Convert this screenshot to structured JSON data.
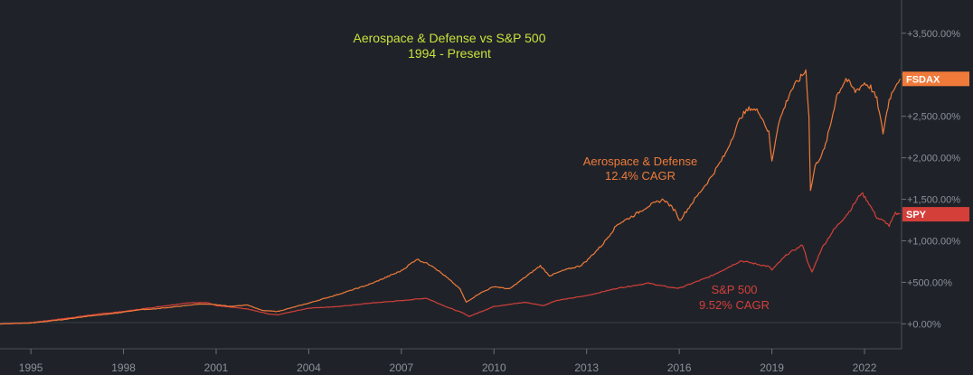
{
  "chart_data": {
    "type": "line",
    "title": "Aerospace & Defense vs S&P 500",
    "subtitle": "1994 - Present",
    "xlim": [
      1994,
      2023.2
    ],
    "ylim": [
      -300,
      3900
    ],
    "x_ticks": [
      {
        "value": 1995,
        "label": "1995"
      },
      {
        "value": 1998,
        "label": "1998"
      },
      {
        "value": 2001,
        "label": "2001"
      },
      {
        "value": 2004,
        "label": "2004"
      },
      {
        "value": 2007,
        "label": "2007"
      },
      {
        "value": 2010,
        "label": "2010"
      },
      {
        "value": 2013,
        "label": "2013"
      },
      {
        "value": 2016,
        "label": "2016"
      },
      {
        "value": 2019,
        "label": "2019"
      },
      {
        "value": 2022,
        "label": "2022"
      }
    ],
    "y_ticks": [
      {
        "value": 0,
        "label": "+0.00%"
      },
      {
        "value": 500,
        "label": "+500.00%"
      },
      {
        "value": 1000,
        "label": "+1,000.00%"
      },
      {
        "value": 1500,
        "label": "+1,500.00%"
      },
      {
        "value": 2000,
        "label": "+2,000.00%"
      },
      {
        "value": 2500,
        "label": "+2,500.00%"
      },
      {
        "value": 3000,
        "label": ""
      },
      {
        "value": 3500,
        "label": "+3,500.00%"
      }
    ],
    "grid": false,
    "series": [
      {
        "name": "FSDAX",
        "color": "#f07a3a",
        "annotation": [
          "Aerospace & Defense",
          "12.4% CAGR"
        ],
        "points": [
          [
            1994.0,
            0
          ],
          [
            1995.0,
            10
          ],
          [
            1996.0,
            50
          ],
          [
            1997.0,
            100
          ],
          [
            1997.8,
            130
          ],
          [
            1998.5,
            170
          ],
          [
            1999.0,
            180
          ],
          [
            2000.0,
            220
          ],
          [
            2000.5,
            240
          ],
          [
            2001.0,
            230
          ],
          [
            2001.5,
            210
          ],
          [
            2002.0,
            230
          ],
          [
            2002.5,
            160
          ],
          [
            2003.0,
            150
          ],
          [
            2003.5,
            200
          ],
          [
            2004.0,
            250
          ],
          [
            2005.0,
            360
          ],
          [
            2006.0,
            480
          ],
          [
            2007.0,
            640
          ],
          [
            2007.5,
            780
          ],
          [
            2008.0,
            700
          ],
          [
            2008.5,
            550
          ],
          [
            2008.9,
            420
          ],
          [
            2009.1,
            260
          ],
          [
            2009.5,
            360
          ],
          [
            2010.0,
            450
          ],
          [
            2010.5,
            420
          ],
          [
            2011.0,
            560
          ],
          [
            2011.5,
            700
          ],
          [
            2011.8,
            580
          ],
          [
            2012.3,
            650
          ],
          [
            2012.8,
            700
          ],
          [
            2013.0,
            760
          ],
          [
            2013.5,
            950
          ],
          [
            2014.0,
            1200
          ],
          [
            2014.5,
            1300
          ],
          [
            2015.0,
            1420
          ],
          [
            2015.5,
            1500
          ],
          [
            2015.9,
            1350
          ],
          [
            2016.0,
            1240
          ],
          [
            2016.5,
            1500
          ],
          [
            2017.0,
            1750
          ],
          [
            2017.5,
            2050
          ],
          [
            2018.0,
            2500
          ],
          [
            2018.3,
            2600
          ],
          [
            2018.6,
            2550
          ],
          [
            2018.9,
            2300
          ],
          [
            2019.0,
            1950
          ],
          [
            2019.2,
            2400
          ],
          [
            2019.6,
            2800
          ],
          [
            2019.9,
            2950
          ],
          [
            2020.1,
            3050
          ],
          [
            2020.2,
            2500
          ],
          [
            2020.25,
            1600
          ],
          [
            2020.4,
            1900
          ],
          [
            2020.7,
            2100
          ],
          [
            2020.9,
            2400
          ],
          [
            2021.1,
            2750
          ],
          [
            2021.4,
            2950
          ],
          [
            2021.7,
            2800
          ],
          [
            2022.0,
            2900
          ],
          [
            2022.2,
            2850
          ],
          [
            2022.4,
            2700
          ],
          [
            2022.6,
            2300
          ],
          [
            2022.8,
            2700
          ],
          [
            2023.0,
            2880
          ],
          [
            2023.15,
            2950
          ]
        ]
      },
      {
        "name": "SPY",
        "color": "#d43f3a",
        "annotation": [
          "S&P 500",
          "9.52% CAGR"
        ],
        "points": [
          [
            1994.0,
            0
          ],
          [
            1995.0,
            15
          ],
          [
            1996.0,
            60
          ],
          [
            1997.0,
            110
          ],
          [
            1998.0,
            150
          ],
          [
            1999.0,
            200
          ],
          [
            2000.0,
            250
          ],
          [
            2000.7,
            260
          ],
          [
            2001.0,
            220
          ],
          [
            2001.5,
            200
          ],
          [
            2002.0,
            180
          ],
          [
            2002.7,
            120
          ],
          [
            2003.0,
            110
          ],
          [
            2003.5,
            150
          ],
          [
            2004.0,
            190
          ],
          [
            2005.0,
            210
          ],
          [
            2006.0,
            250
          ],
          [
            2007.0,
            280
          ],
          [
            2007.8,
            310
          ],
          [
            2008.5,
            200
          ],
          [
            2009.0,
            130
          ],
          [
            2009.2,
            90
          ],
          [
            2009.6,
            150
          ],
          [
            2010.0,
            210
          ],
          [
            2011.0,
            260
          ],
          [
            2011.6,
            220
          ],
          [
            2012.0,
            280
          ],
          [
            2013.0,
            340
          ],
          [
            2014.0,
            430
          ],
          [
            2015.0,
            490
          ],
          [
            2015.7,
            440
          ],
          [
            2016.0,
            430
          ],
          [
            2016.5,
            500
          ],
          [
            2017.0,
            570
          ],
          [
            2018.0,
            760
          ],
          [
            2018.9,
            690
          ],
          [
            2019.0,
            650
          ],
          [
            2019.5,
            840
          ],
          [
            2020.0,
            950
          ],
          [
            2020.2,
            700
          ],
          [
            2020.3,
            620
          ],
          [
            2020.6,
            900
          ],
          [
            2021.0,
            1130
          ],
          [
            2021.5,
            1350
          ],
          [
            2021.9,
            1580
          ],
          [
            2022.1,
            1480
          ],
          [
            2022.4,
            1280
          ],
          [
            2022.7,
            1220
          ],
          [
            2022.8,
            1180
          ],
          [
            2023.0,
            1330
          ],
          [
            2023.15,
            1320
          ]
        ]
      }
    ]
  }
}
